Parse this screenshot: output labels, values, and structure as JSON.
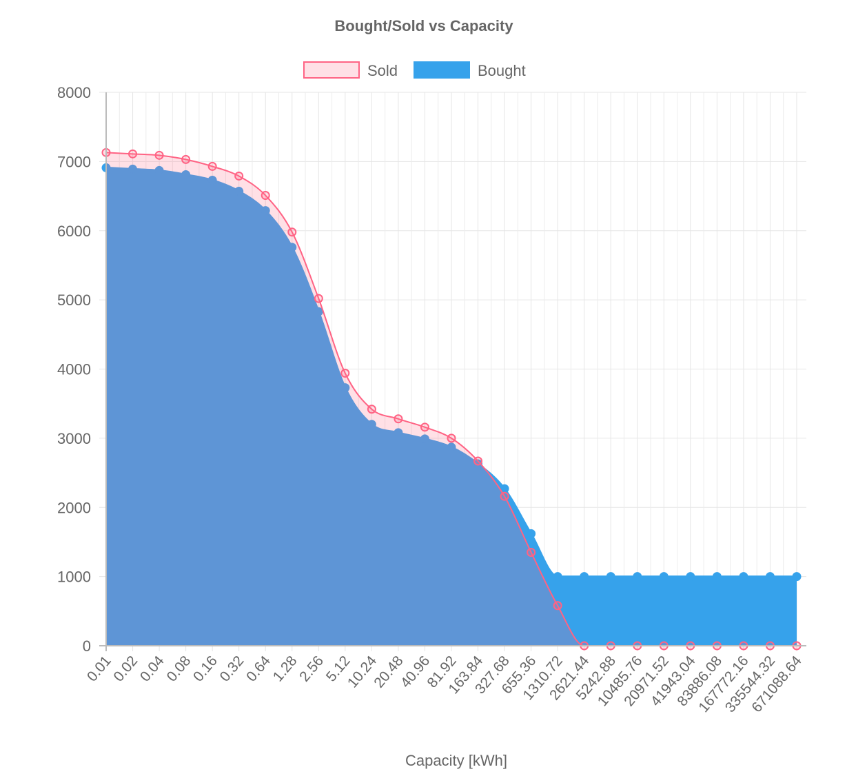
{
  "chart_data": {
    "type": "area",
    "title": "Bought/Sold vs Capacity",
    "xlabel": "Capacity [kWh]",
    "ylabel": "",
    "ylim": [
      0,
      8000
    ],
    "y_ticks": [
      0,
      1000,
      2000,
      3000,
      4000,
      5000,
      6000,
      7000,
      8000
    ],
    "grid": true,
    "legend_position": "top-center",
    "categories": [
      "0.01",
      "0.02",
      "0.04",
      "0.08",
      "0.16",
      "0.32",
      "0.64",
      "1.28",
      "2.56",
      "5.12",
      "10.24",
      "20.48",
      "40.96",
      "81.92",
      "163.84",
      "327.68",
      "655.36",
      "1310.72",
      "2621.44",
      "5242.88",
      "10485.76",
      "20971.52",
      "41943.04",
      "83886.08",
      "167772.16",
      "335544.32",
      "671088.64"
    ],
    "series": [
      {
        "name": "Sold",
        "line_color": "#ff6384",
        "fill_color": "rgba(255,99,132,0.2)",
        "point_style": "hollow",
        "values": [
          7130,
          7110,
          7090,
          7030,
          6930,
          6790,
          6510,
          5980,
          5020,
          3940,
          3420,
          3280,
          3160,
          3000,
          2670,
          2160,
          1350,
          580,
          0,
          0,
          0,
          0,
          0,
          0,
          0,
          0,
          0
        ]
      },
      {
        "name": "Bought",
        "line_color": "#36a2eb",
        "fill_color": "#36a2eb",
        "point_style": "filled",
        "values": [
          6910,
          6890,
          6870,
          6810,
          6730,
          6570,
          6290,
          5760,
          4830,
          3730,
          3200,
          3080,
          2990,
          2870,
          2630,
          2270,
          1620,
          1000,
          1000,
          1000,
          1000,
          1000,
          1000,
          1000,
          1000,
          1000,
          1000
        ]
      }
    ]
  }
}
